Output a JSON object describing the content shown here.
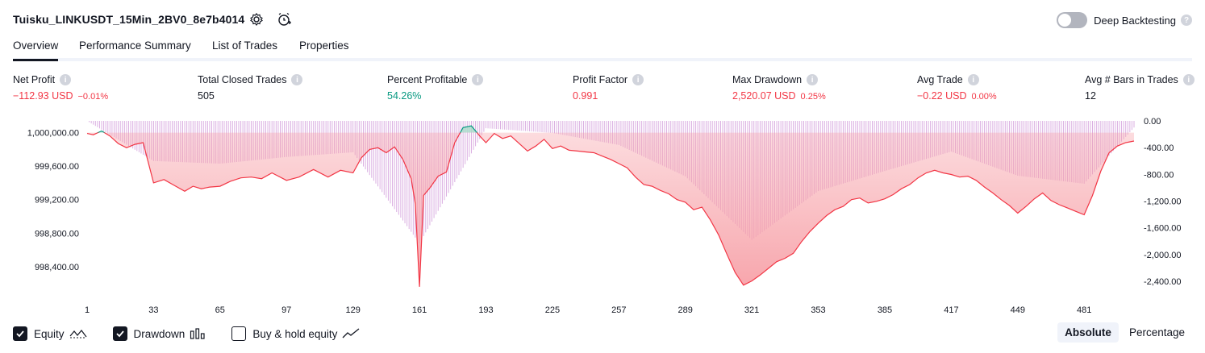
{
  "header": {
    "title": "Tuisku_LINKUSDT_15Min_2BV0_8e7b4014",
    "settings_icon": "gear-icon",
    "alert_icon": "alarm-clock-plus-icon",
    "deep_backtesting_label": "Deep Backtesting",
    "deep_backtesting_enabled": false
  },
  "tabs": [
    {
      "label": "Overview",
      "active": true
    },
    {
      "label": "Performance Summary",
      "active": false
    },
    {
      "label": "List of Trades",
      "active": false
    },
    {
      "label": "Properties",
      "active": false
    }
  ],
  "stats": [
    {
      "label": "Net Profit",
      "value": "−112.93 USD",
      "pct": "−0.01%"
    },
    {
      "label": "Total Closed Trades",
      "value": "505",
      "pct": ""
    },
    {
      "label": "Percent Profitable",
      "value": "54.26%",
      "pct": ""
    },
    {
      "label": "Profit Factor",
      "value": "0.991",
      "pct": ""
    },
    {
      "label": "Max Drawdown",
      "value": "2,520.07 USD",
      "pct": "0.25%"
    },
    {
      "label": "Avg Trade",
      "value": "−0.22 USD",
      "pct": "0.00%"
    },
    {
      "label": "Avg # Bars in Trades",
      "value": "12",
      "pct": ""
    }
  ],
  "colors": {
    "negative": "#f23645",
    "positive": "#089981",
    "drawdown_bar": "#ce93d8",
    "equity_fill_neg": "#f7a1a8",
    "equity_fill_pos": "#a7dcc9"
  },
  "chart_data": {
    "type": "area",
    "x_tick_labels": [
      "1",
      "33",
      "65",
      "97",
      "129",
      "161",
      "193",
      "225",
      "257",
      "289",
      "321",
      "353",
      "385",
      "417",
      "449",
      "481"
    ],
    "y_left_tick_labels": [
      "1,000,000.00",
      "999,600.00",
      "999,200.00",
      "998,800.00",
      "998,400.00"
    ],
    "y_right_tick_labels": [
      "0.00",
      "-400.00",
      "-800.00",
      "-1,200.00",
      "-1,600.00",
      "-2,000.00",
      "-2,400.00"
    ],
    "baseline": 1000000,
    "ylim_left": [
      998130,
      1000140
    ],
    "ylim_right": [
      -2520,
      0
    ],
    "xlim": [
      1,
      505
    ],
    "series": [
      {
        "name": "Equity",
        "x": [
          1,
          4,
          8,
          12,
          16,
          20,
          24,
          28,
          33,
          38,
          43,
          48,
          52,
          56,
          60,
          65,
          70,
          75,
          80,
          85,
          90,
          97,
          103,
          110,
          117,
          123,
          129,
          133,
          137,
          141,
          145,
          149,
          153,
          157,
          159,
          161,
          163,
          166,
          170,
          174,
          178,
          182,
          186,
          190,
          193,
          197,
          201,
          205,
          209,
          213,
          217,
          221,
          225,
          229,
          233,
          237,
          241,
          245,
          249,
          253,
          257,
          261,
          265,
          269,
          273,
          277,
          281,
          285,
          289,
          293,
          297,
          301,
          305,
          309,
          313,
          317,
          321,
          325,
          329,
          333,
          337,
          341,
          345,
          349,
          353,
          357,
          361,
          365,
          369,
          373,
          377,
          381,
          385,
          389,
          393,
          397,
          401,
          405,
          409,
          413,
          417,
          421,
          425,
          429,
          433,
          437,
          441,
          445,
          449,
          453,
          457,
          461,
          465,
          469,
          473,
          477,
          481,
          485,
          489,
          493,
          497,
          501,
          505
        ],
        "values": [
          999990,
          999975,
          1000020,
          999960,
          999870,
          999820,
          999860,
          999880,
          999400,
          999440,
          999370,
          999300,
          999360,
          999330,
          999350,
          999360,
          999420,
          999460,
          999470,
          999450,
          999520,
          999430,
          999470,
          999560,
          999470,
          999550,
          999520,
          999700,
          999800,
          999820,
          999760,
          999830,
          999680,
          999450,
          999150,
          998160,
          999250,
          999340,
          999480,
          999530,
          999880,
          1000060,
          1000080,
          999960,
          999880,
          999990,
          999930,
          999960,
          999870,
          999780,
          999840,
          999920,
          999810,
          999840,
          999790,
          999780,
          999770,
          999760,
          999720,
          999680,
          999630,
          999580,
          999470,
          999380,
          999360,
          999310,
          999270,
          999200,
          999170,
          999080,
          999110,
          998960,
          998780,
          998550,
          998330,
          998180,
          998230,
          998300,
          998380,
          998460,
          998500,
          998560,
          998700,
          998820,
          998920,
          999010,
          999080,
          999120,
          999200,
          999220,
          999160,
          999180,
          999210,
          999260,
          999330,
          999380,
          999460,
          999520,
          999550,
          999520,
          999500,
          999470,
          999480,
          999430,
          999350,
          999280,
          999200,
          999130,
          999040,
          999120,
          999210,
          999280,
          999190,
          999140,
          999100,
          999060,
          999020,
          999250,
          999540,
          999760,
          999840,
          999880,
          999900
        ]
      },
      {
        "name": "Drawdown",
        "x": [
          1,
          33,
          65,
          97,
          129,
          161,
          193,
          225,
          257,
          289,
          321,
          353,
          385,
          417,
          449,
          481,
          505
        ],
        "values": [
          0,
          -600,
          -640,
          -540,
          -470,
          -1830,
          -110,
          -180,
          -360,
          -830,
          -1780,
          -1050,
          -750,
          -460,
          -820,
          -940,
          -100
        ]
      }
    ],
    "legend": [
      {
        "label": "Equity",
        "checked": true,
        "icon": "equity-line-icon"
      },
      {
        "label": "Drawdown",
        "checked": true,
        "icon": "bar-chart-icon"
      },
      {
        "label": "Buy & hold equity",
        "checked": false,
        "icon": "trend-line-icon"
      }
    ]
  },
  "view_modes": [
    {
      "label": "Absolute",
      "active": true
    },
    {
      "label": "Percentage",
      "active": false
    }
  ]
}
